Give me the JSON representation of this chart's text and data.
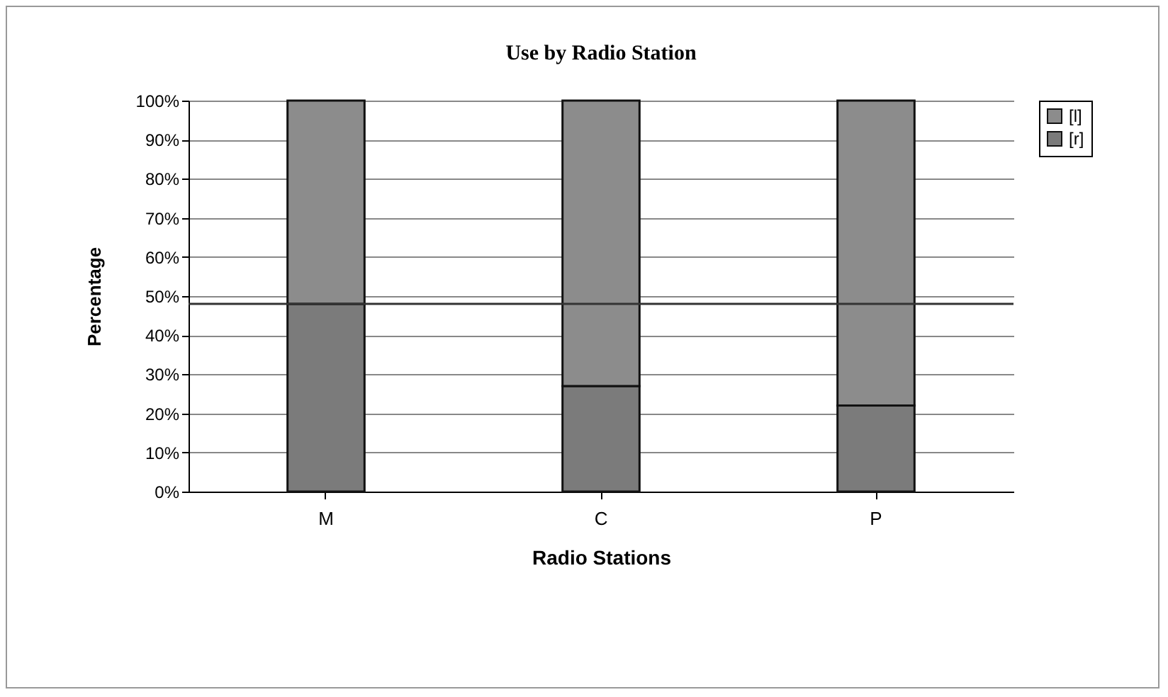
{
  "chart_data": {
    "type": "bar",
    "title": "Use by Radio Station",
    "xlabel": "Radio Stations",
    "ylabel": "Percentage",
    "categories": [
      "M",
      "C",
      "P"
    ],
    "stacked": true,
    "series": [
      {
        "name": "[r]",
        "color": "#7b7b7b",
        "values": [
          48,
          27,
          22
        ]
      },
      {
        "name": "[l]",
        "color": "#8c8c8c",
        "values": [
          52,
          73,
          78
        ]
      }
    ],
    "ylim": [
      0,
      100
    ],
    "yticks": [
      {
        "value": 0,
        "label": "0%"
      },
      {
        "value": 10,
        "label": "10%"
      },
      {
        "value": 20,
        "label": "20%"
      },
      {
        "value": 30,
        "label": "30%"
      },
      {
        "value": 40,
        "label": "40%"
      },
      {
        "value": 50,
        "label": "50%"
      },
      {
        "value": 60,
        "label": "60%"
      },
      {
        "value": 70,
        "label": "70%"
      },
      {
        "value": 80,
        "label": "80%"
      },
      {
        "value": 90,
        "label": "90%"
      },
      {
        "value": 100,
        "label": "100%"
      }
    ],
    "grid": "y",
    "legend": "right",
    "ref_lines": [
      {
        "axis": "y",
        "value": 48,
        "color": "#333333"
      }
    ]
  }
}
